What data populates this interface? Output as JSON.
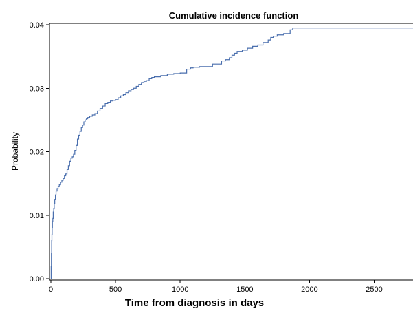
{
  "chart_data": {
    "type": "line",
    "title": "Cumulative incidence function",
    "xlabel": "Time from diagnosis in days",
    "ylabel": "Probability",
    "xlim": [
      0,
      2800
    ],
    "ylim": [
      0,
      0.04
    ],
    "x_ticks": [
      0,
      500,
      1000,
      1500,
      2000,
      2500
    ],
    "x_tick_labels": [
      "0",
      "500",
      "1000",
      "1500",
      "2000",
      "2500"
    ],
    "y_ticks": [
      0,
      0.01,
      0.02,
      0.03,
      0.04
    ],
    "y_tick_labels": [
      "0.00",
      "0.01",
      "0.02",
      "0.03",
      "0.04"
    ],
    "grid": false,
    "step": true,
    "colors": {
      "line": "#4a6fae",
      "axis": "#000000"
    },
    "series": [
      {
        "x": [
          0,
          2,
          4,
          6,
          8,
          10,
          12,
          15,
          18,
          22,
          26,
          30,
          35,
          40,
          48,
          56,
          65,
          75,
          85,
          95,
          105,
          115,
          125,
          135,
          145,
          155,
          165,
          175,
          185,
          195,
          205,
          215,
          225,
          235,
          245,
          255,
          265,
          275,
          285,
          300,
          320,
          340,
          360,
          380,
          400,
          420,
          440,
          460,
          480,
          500,
          520,
          540,
          560,
          580,
          600,
          620,
          640,
          660,
          680,
          700,
          720,
          740,
          760,
          780,
          800,
          850,
          900,
          950,
          1000,
          1050,
          1080,
          1100,
          1150,
          1200,
          1250,
          1290,
          1320,
          1350,
          1380,
          1400,
          1420,
          1440,
          1480,
          1520,
          1560,
          1600,
          1640,
          1680,
          1700,
          1720,
          1750,
          1800,
          1850,
          1870,
          2800
        ],
        "y": [
          0,
          0.002,
          0.004,
          0.006,
          0.007,
          0.008,
          0.009,
          0.0095,
          0.0105,
          0.011,
          0.0118,
          0.0125,
          0.0132,
          0.0138,
          0.0142,
          0.0145,
          0.0148,
          0.0152,
          0.0155,
          0.0158,
          0.0162,
          0.0165,
          0.0172,
          0.0178,
          0.0185,
          0.019,
          0.0192,
          0.0196,
          0.0202,
          0.021,
          0.022,
          0.0226,
          0.0232,
          0.0238,
          0.0242,
          0.0247,
          0.025,
          0.0252,
          0.0254,
          0.0256,
          0.0258,
          0.026,
          0.0264,
          0.0268,
          0.0272,
          0.0276,
          0.0278,
          0.028,
          0.0281,
          0.0282,
          0.0285,
          0.0288,
          0.029,
          0.0293,
          0.0296,
          0.0298,
          0.03,
          0.0303,
          0.0306,
          0.0309,
          0.0311,
          0.0312,
          0.0315,
          0.0317,
          0.0318,
          0.032,
          0.0322,
          0.0323,
          0.0324,
          0.033,
          0.0332,
          0.0333,
          0.0334,
          0.0334,
          0.0338,
          0.0338,
          0.0343,
          0.0345,
          0.0348,
          0.0352,
          0.0355,
          0.0358,
          0.036,
          0.0363,
          0.0366,
          0.0368,
          0.0372,
          0.0376,
          0.038,
          0.0382,
          0.0384,
          0.0386,
          0.0392,
          0.0395,
          0.0395
        ]
      }
    ]
  }
}
